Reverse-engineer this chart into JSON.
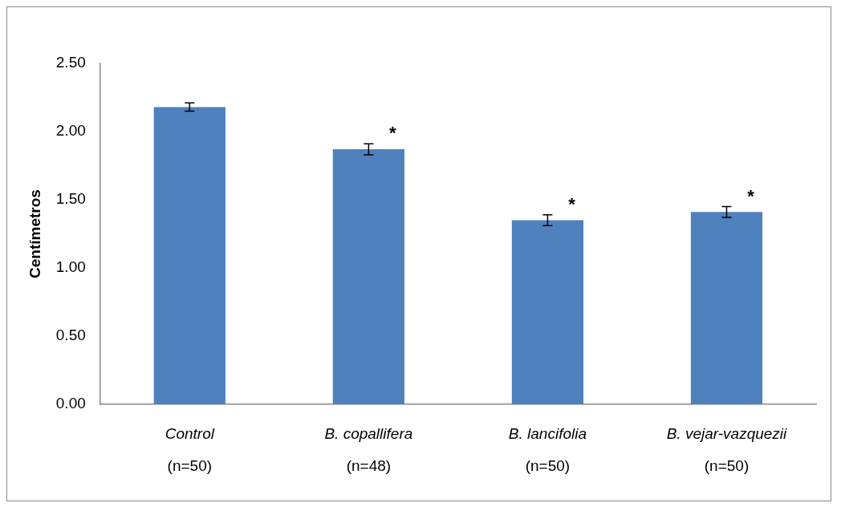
{
  "chart_data": {
    "type": "bar",
    "ylabel": "Centímetros",
    "categories": [
      "Control\n(n=50)",
      "B. copallifera\n(n=48)",
      "B. lancifolia\n(n=50)",
      "B. vejar-vazquezii\n(n=50)"
    ],
    "values": [
      2.18,
      1.87,
      1.35,
      1.41
    ],
    "errors": [
      0.03,
      0.04,
      0.04,
      0.04
    ],
    "color": "#4f81bd",
    "ylim": [
      0,
      2.5
    ],
    "yticks": [
      {
        "value": 0,
        "label": "0.00"
      },
      {
        "value": 0.5,
        "label": "0.50"
      },
      {
        "value": 1,
        "label": "1.00"
      },
      {
        "value": 1.5,
        "label": "1.50"
      },
      {
        "value": 2,
        "label": "2.00"
      },
      {
        "value": 2.5,
        "label": "2.50"
      }
    ],
    "grid": false,
    "legend": false,
    "annotations": [
      {
        "text": "*",
        "x": "B. copallifera\n(n=48)",
        "y": 1.91
      },
      {
        "text": "*",
        "x": "B. lancifolia\n(n=50)",
        "y": 1.39
      },
      {
        "text": "*",
        "x": "B. vejar-vazquezii\n(n=50)",
        "y": 1.45
      }
    ]
  }
}
